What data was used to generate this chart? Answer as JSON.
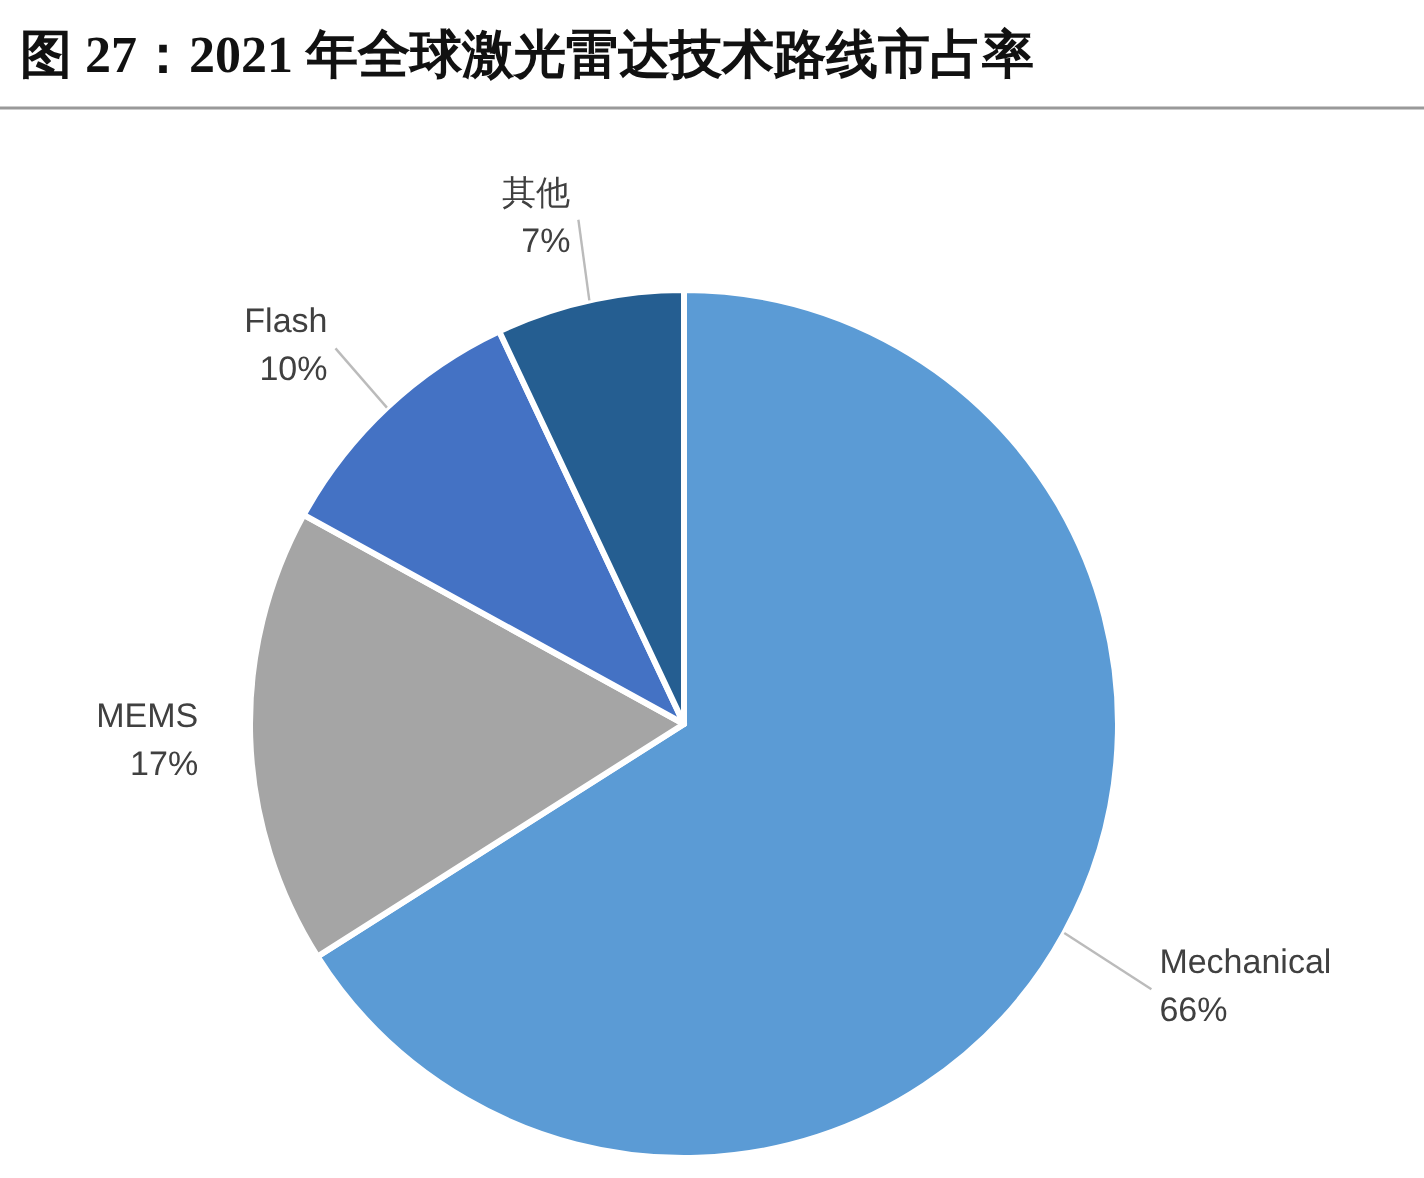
{
  "chart_data": {
    "type": "pie",
    "title": "图 27：2021 年全球激光雷达技术路线市占率",
    "categories": [
      "Mechanical",
      "MEMS",
      "Flash",
      "其他"
    ],
    "values": [
      66,
      17,
      10,
      7
    ],
    "value_labels": [
      "66%",
      "17%",
      "10%",
      "7%"
    ],
    "colors": [
      "#5b9bd5",
      "#a5a5a5",
      "#4472c4",
      "#255e91"
    ]
  }
}
